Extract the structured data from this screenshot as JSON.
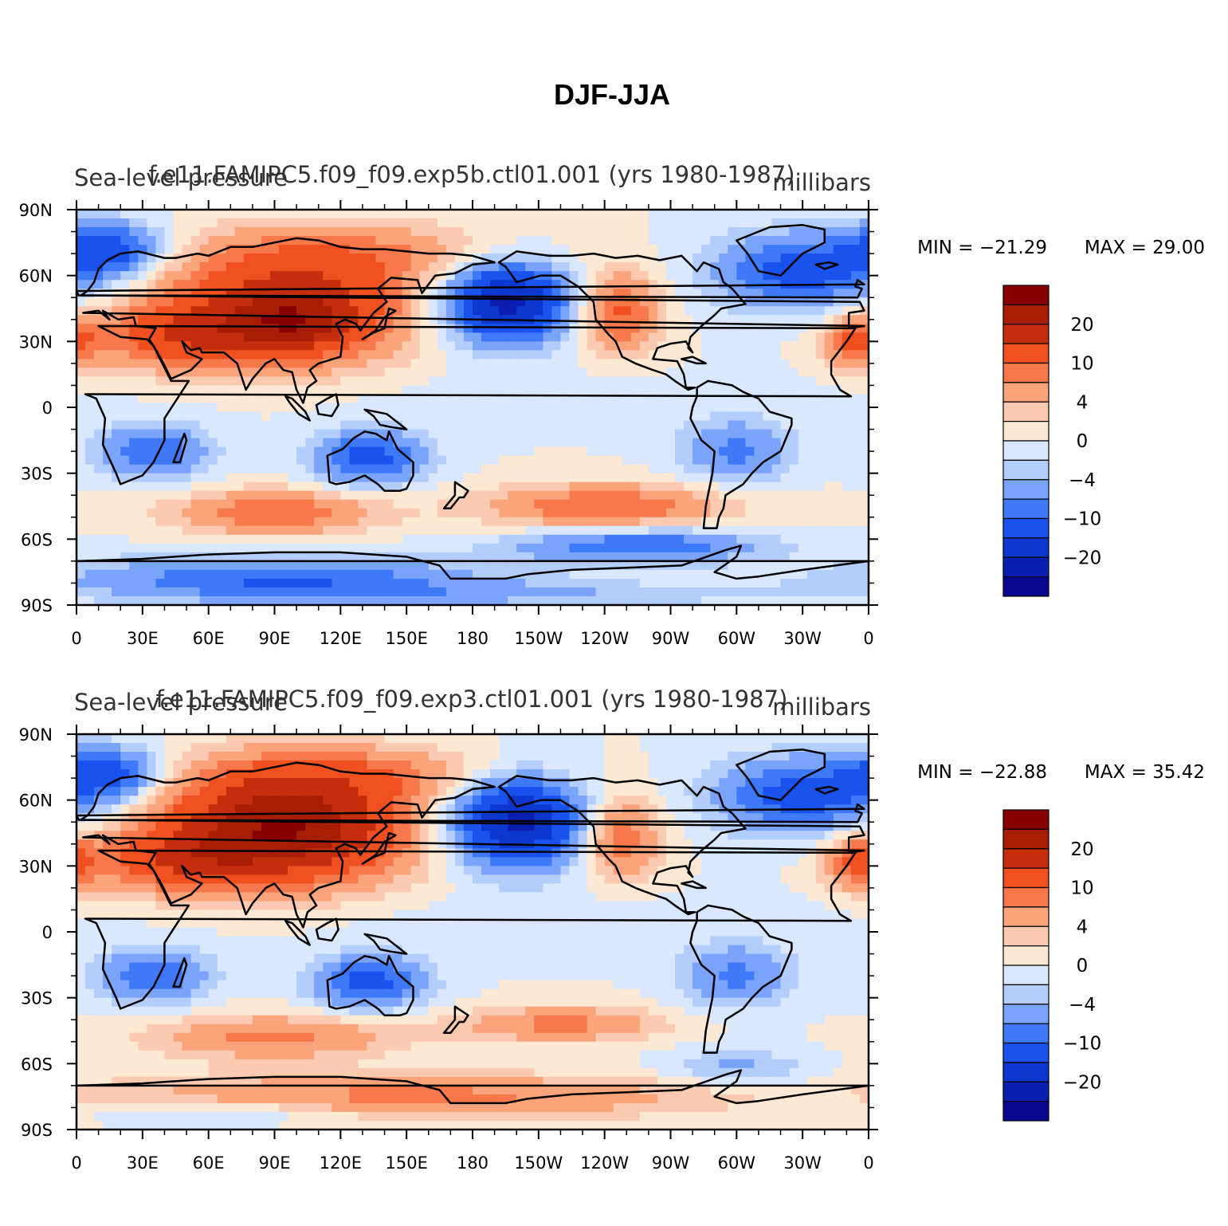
{
  "title": "DJF-JJA",
  "colors": {
    "levels": [
      "#07078f",
      "#0a1fb0",
      "#0d38cf",
      "#1a52ee",
      "#3d79f8",
      "#7aa3fb",
      "#b3cdfd",
      "#d9e8fe",
      "#fde8d4",
      "#fccab0",
      "#fba47c",
      "#f7784a",
      "#f0501f",
      "#c42e0c",
      "#a81d06",
      "#870000"
    ],
    "coastline": "#000000"
  },
  "colorbar": {
    "labels": [
      "20",
      "10",
      "4",
      "0",
      "−4",
      "−10",
      "−20"
    ]
  },
  "axes": {
    "lat_labels": [
      "90N",
      "60N",
      "30N",
      "0",
      "30S",
      "60S",
      "90S"
    ],
    "lon_labels": [
      "0",
      "30E",
      "60E",
      "90E",
      "120E",
      "150E",
      "180",
      "150W",
      "120W",
      "90W",
      "60W",
      "30W",
      "0"
    ]
  },
  "panels": [
    {
      "left_string": "Sea-level pressure",
      "center_string": "f.e11.FAMIPC5.f09_f09.exp5b.ctl01.001 (yrs 1980-1987)",
      "right_string": "millibars",
      "min_label": "MIN = −21.29",
      "max_label": "MAX =   29.00",
      "chart_data": {
        "type": "heatmap",
        "field": "DJF minus JJA sea-level pressure",
        "units": "millibars",
        "min": -21.29,
        "max": 29.0,
        "xlim": [
          0,
          360
        ],
        "ylim": [
          -90,
          90
        ],
        "features": [
          {
            "lon": 95,
            "lat": 45,
            "rx": 55,
            "ry": 25,
            "v": 18
          },
          {
            "lon": 100,
            "lat": 38,
            "rx": 25,
            "ry": 12,
            "v": 8
          },
          {
            "lon": 45,
            "lat": 32,
            "rx": 40,
            "ry": 14,
            "v": 10
          },
          {
            "lon": 130,
            "lat": 70,
            "rx": 70,
            "ry": 14,
            "v": 6
          },
          {
            "lon": 355,
            "lat": 30,
            "rx": 15,
            "ry": 12,
            "v": 10
          },
          {
            "lon": 247,
            "lat": 43,
            "rx": 18,
            "ry": 18,
            "v": 11
          },
          {
            "lon": 200,
            "lat": 5,
            "rx": 150,
            "ry": 12,
            "v": -1
          },
          {
            "lon": 195,
            "lat": 48,
            "rx": 28,
            "ry": 18,
            "v": -22
          },
          {
            "lon": 330,
            "lat": 62,
            "rx": 40,
            "ry": 17,
            "v": -12
          },
          {
            "lon": 15,
            "lat": 72,
            "rx": 25,
            "ry": 12,
            "v": -12
          },
          {
            "lon": 35,
            "lat": -20,
            "rx": 25,
            "ry": 12,
            "v": -10
          },
          {
            "lon": 133,
            "lat": -23,
            "rx": 25,
            "ry": 12,
            "v": -12
          },
          {
            "lon": 300,
            "lat": -20,
            "rx": 25,
            "ry": 14,
            "v": -8
          },
          {
            "lon": 90,
            "lat": -48,
            "rx": 45,
            "ry": 10,
            "v": 10
          },
          {
            "lon": 240,
            "lat": -45,
            "rx": 55,
            "ry": 10,
            "v": 10
          },
          {
            "lon": 255,
            "lat": -63,
            "rx": 55,
            "ry": 8,
            "v": -10
          },
          {
            "lon": 90,
            "lat": -78,
            "rx": 90,
            "ry": 10,
            "v": -10
          },
          {
            "lon": 200,
            "lat": -85,
            "rx": 120,
            "ry": 6,
            "v": -4
          }
        ]
      }
    },
    {
      "left_string": "Sea-level pressure",
      "center_string": "f.e11.FAMIPC5.f09_f09.exp3.ctl01.001 (yrs 1980-1987)",
      "right_string": "millibars",
      "min_label": "MIN = −22.88",
      "max_label": "MAX =   35.42",
      "chart_data": {
        "type": "heatmap",
        "field": "DJF minus JJA sea-level pressure",
        "units": "millibars",
        "min": -22.88,
        "max": 35.42,
        "xlim": [
          0,
          360
        ],
        "ylim": [
          -90,
          90
        ],
        "features": [
          {
            "lon": 95,
            "lat": 48,
            "rx": 55,
            "ry": 25,
            "v": 25
          },
          {
            "lon": 45,
            "lat": 32,
            "rx": 40,
            "ry": 14,
            "v": 10
          },
          {
            "lon": 130,
            "lat": 72,
            "rx": 70,
            "ry": 12,
            "v": 6
          },
          {
            "lon": 355,
            "lat": 32,
            "rx": 15,
            "ry": 12,
            "v": 10
          },
          {
            "lon": 247,
            "lat": 43,
            "rx": 18,
            "ry": 18,
            "v": 10
          },
          {
            "lon": 200,
            "lat": 5,
            "rx": 150,
            "ry": 12,
            "v": -1
          },
          {
            "lon": 200,
            "lat": 50,
            "rx": 30,
            "ry": 20,
            "v": -22
          },
          {
            "lon": 330,
            "lat": 62,
            "rx": 40,
            "ry": 17,
            "v": -12
          },
          {
            "lon": 15,
            "lat": 72,
            "rx": 25,
            "ry": 12,
            "v": -12
          },
          {
            "lon": 35,
            "lat": -20,
            "rx": 25,
            "ry": 12,
            "v": -10
          },
          {
            "lon": 133,
            "lat": -23,
            "rx": 25,
            "ry": 12,
            "v": -12
          },
          {
            "lon": 300,
            "lat": -20,
            "rx": 25,
            "ry": 14,
            "v": -8
          },
          {
            "lon": 90,
            "lat": -48,
            "rx": 55,
            "ry": 10,
            "v": 8
          },
          {
            "lon": 220,
            "lat": -42,
            "rx": 45,
            "ry": 8,
            "v": 8
          },
          {
            "lon": 300,
            "lat": -62,
            "rx": 30,
            "ry": 8,
            "v": -5
          },
          {
            "lon": 150,
            "lat": -75,
            "rx": 140,
            "ry": 10,
            "v": 8
          },
          {
            "lon": 70,
            "lat": -82,
            "rx": 60,
            "ry": 6,
            "v": -4
          }
        ]
      }
    }
  ]
}
